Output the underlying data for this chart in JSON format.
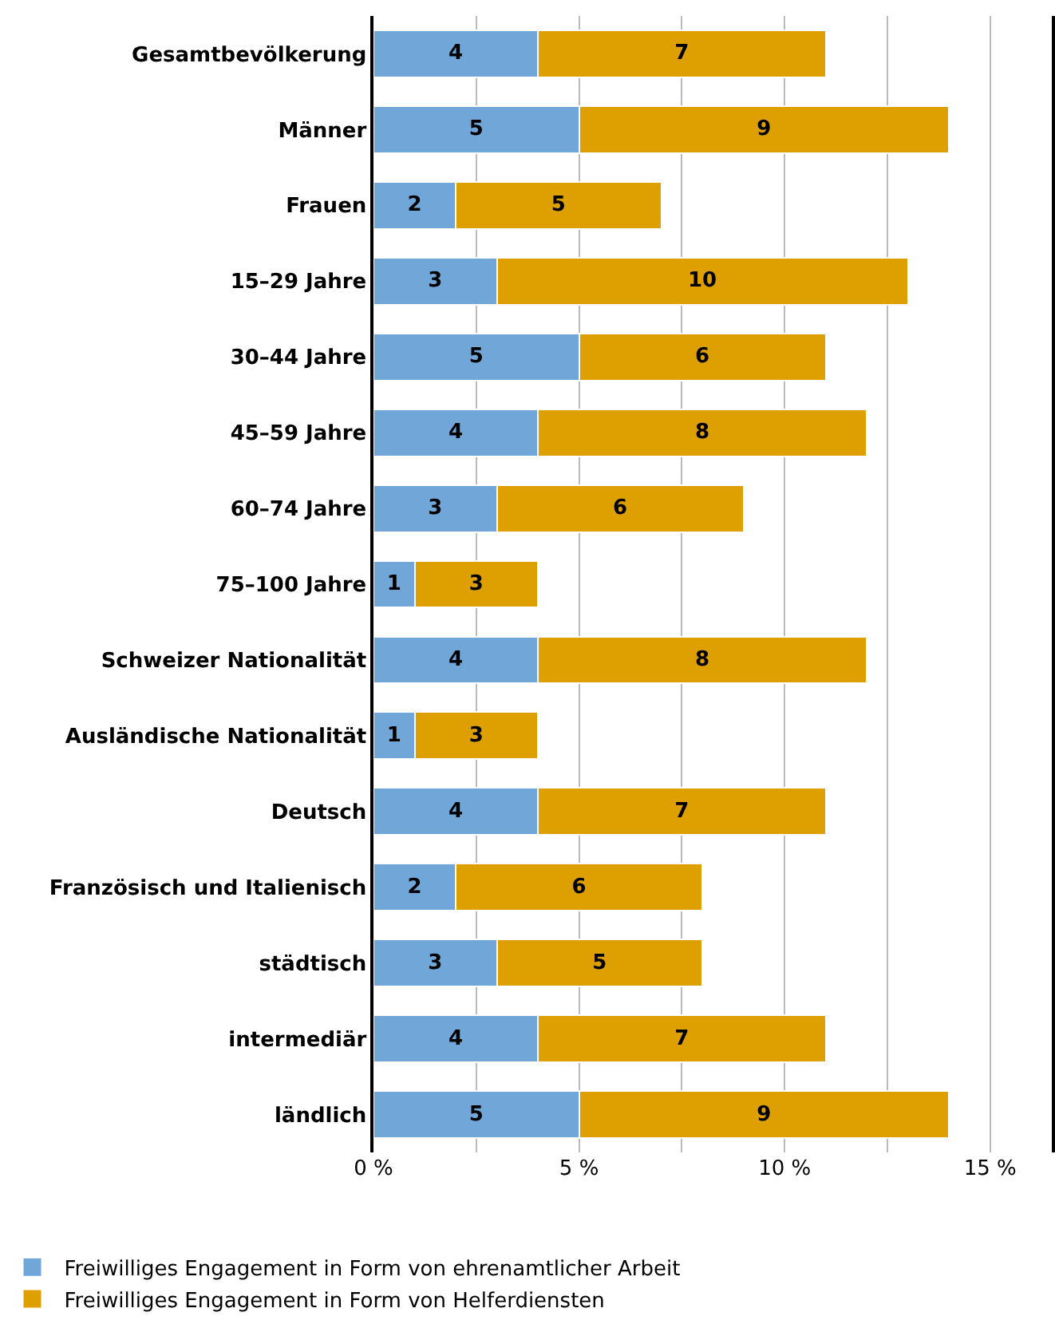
{
  "chart_data": {
    "type": "bar",
    "orientation": "horizontal",
    "stacked": true,
    "data_labels": true,
    "categories": [
      "Gesamtbevölkerung",
      "Männer",
      "Frauen",
      "15–29 Jahre",
      "30–44 Jahre",
      "45–59 Jahre",
      "60–74 Jahre",
      "75–100 Jahre",
      "Schweizer Nationalität",
      "Ausländische Nationalität",
      "Deutsch",
      "Französisch und Italienisch",
      "städtisch",
      "intermediär",
      "ländlich"
    ],
    "series": [
      {
        "name": "Freiwilliges Engagement in Form von ehrenamtlicher Arbeit",
        "color": "#70a6d8",
        "values": [
          4,
          5,
          2,
          3,
          5,
          4,
          3,
          1,
          4,
          1,
          4,
          2,
          3,
          4,
          5
        ]
      },
      {
        "name": "Freiwilliges Engagement in Form von Helferdiensten",
        "color": "#dda000",
        "values": [
          7,
          9,
          5,
          10,
          6,
          8,
          6,
          3,
          8,
          3,
          7,
          6,
          5,
          7,
          9
        ]
      }
    ],
    "xlim": [
      0,
      16.5
    ],
    "xticks": [
      {
        "value": 0,
        "label": "0 %"
      },
      {
        "value": 2.5,
        "label": null
      },
      {
        "value": 5,
        "label": "5 %"
      },
      {
        "value": 7.5,
        "label": null
      },
      {
        "value": 10,
        "label": "10 %"
      },
      {
        "value": 12.5,
        "label": null
      },
      {
        "value": 15,
        "label": "15 %"
      }
    ],
    "grid": "x",
    "legend": "bottom"
  }
}
